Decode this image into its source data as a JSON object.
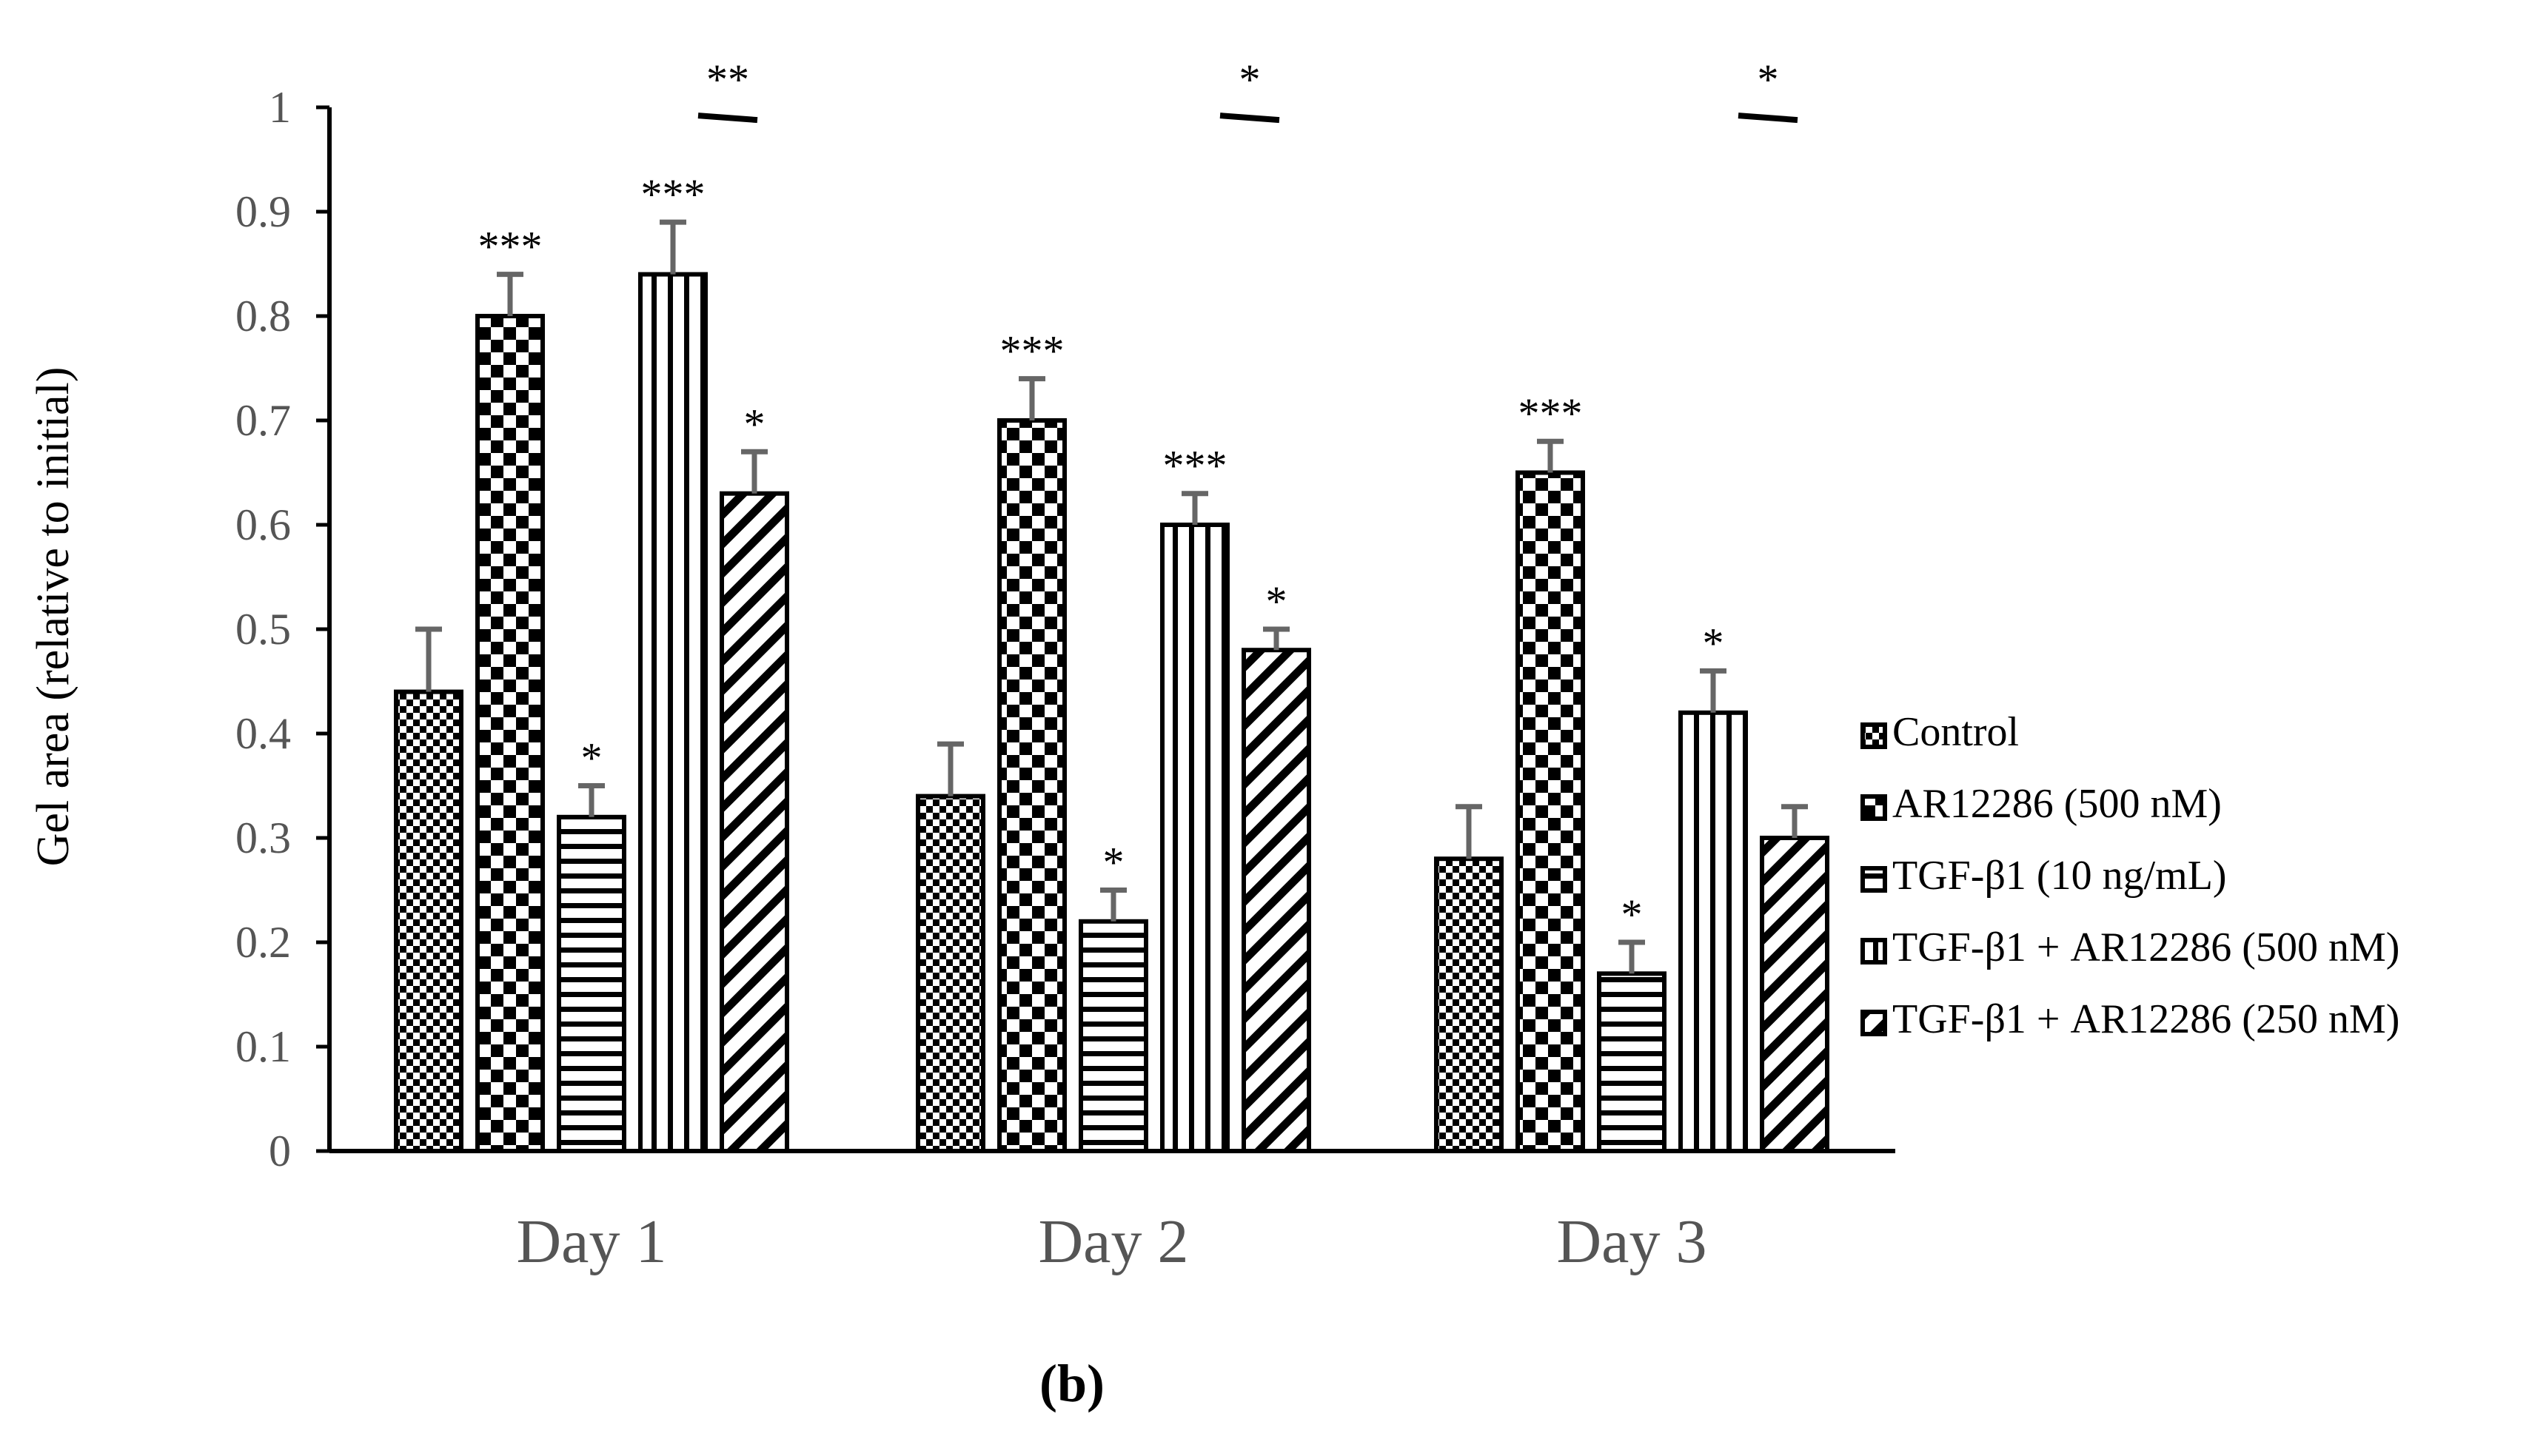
{
  "caption": "(b)",
  "chart_data": {
    "type": "bar",
    "title": "",
    "xlabel": "",
    "ylabel": "Gel area (relative to initial)",
    "ylim": [
      0,
      1
    ],
    "yticks": [
      "0",
      "0.1",
      "0.2",
      "0.3",
      "0.4",
      "0.5",
      "0.6",
      "0.7",
      "0.8",
      "0.9",
      "1"
    ],
    "categories": [
      "Day 1",
      "Day 2",
      "Day 3"
    ],
    "legend_position": "right",
    "series": [
      {
        "name": "Control",
        "pattern": "check-small",
        "values": [
          0.44,
          0.34,
          0.28
        ],
        "errors": [
          0.06,
          0.05,
          0.05
        ],
        "stars": [
          "",
          "",
          ""
        ]
      },
      {
        "name": "AR12286 (500 nM)",
        "pattern": "check-large",
        "values": [
          0.8,
          0.7,
          0.65
        ],
        "errors": [
          0.04,
          0.04,
          0.03
        ],
        "stars": [
          "***",
          "***",
          "***"
        ]
      },
      {
        "name": "TGF-β1 (10 ng/mL)",
        "pattern": "horizontal",
        "values": [
          0.32,
          0.22,
          0.17
        ],
        "errors": [
          0.03,
          0.03,
          0.03
        ],
        "stars": [
          "*",
          "*",
          "*"
        ]
      },
      {
        "name": "TGF-β1 + AR12286 (500 nM)",
        "pattern": "vertical",
        "values": [
          0.84,
          0.6,
          0.42
        ],
        "errors": [
          0.05,
          0.03,
          0.04
        ],
        "stars": [
          "***",
          "***",
          "*"
        ]
      },
      {
        "name": "TGF-β1 + AR12286 (250 nM)",
        "pattern": "diagonal",
        "values": [
          0.63,
          0.48,
          0.3
        ],
        "errors": [
          0.04,
          0.02,
          0.03
        ],
        "stars": [
          "*",
          "*",
          ""
        ]
      }
    ],
    "comparisons": [
      {
        "category": "Day 1",
        "label": "**",
        "y": 0.99
      },
      {
        "category": "Day 2",
        "label": "*",
        "y": 0.99
      },
      {
        "category": "Day 3",
        "label": "*",
        "y": 0.99
      }
    ],
    "colors": {
      "bar_stroke": "#000000",
      "error_bar": "#666666",
      "axis": "#000000",
      "fill": "#ffffff"
    }
  }
}
